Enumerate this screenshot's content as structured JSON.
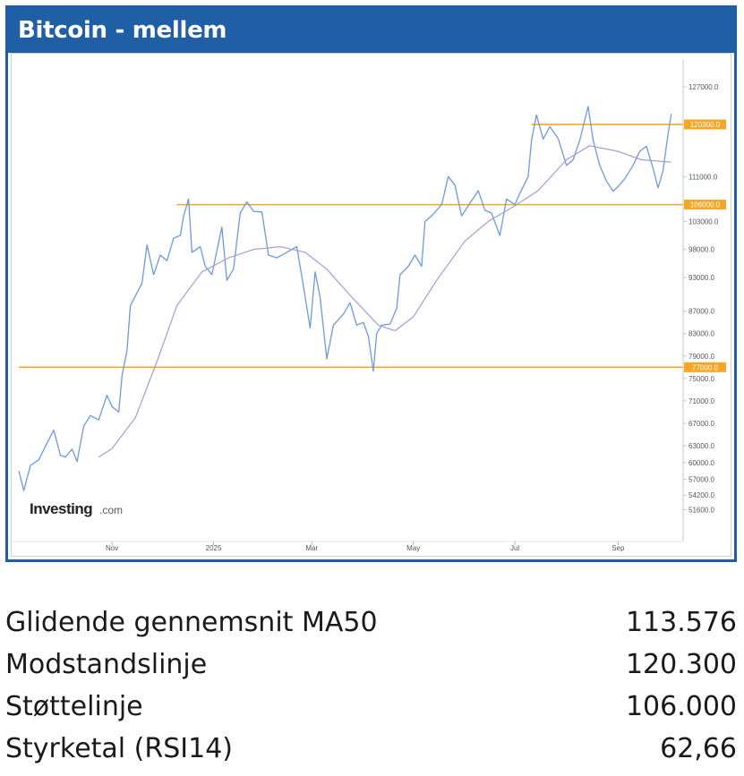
{
  "header": {
    "title": "Bitcoin - mellem"
  },
  "watermark": {
    "brand": "Investing",
    "suffix": ".com"
  },
  "colors": {
    "header_bg": "#1f5fa6",
    "price_line": "#6a9ae0",
    "ma_line": "#a39bd8",
    "level_line": "#f5a623",
    "level_label_bg": "#f5a623"
  },
  "chart_data": {
    "type": "line",
    "title": "Bitcoin - mellem",
    "ylim": [
      48000,
      131000
    ],
    "yticks": [
      51600,
      54200,
      57000,
      60000,
      63000,
      67000,
      71000,
      75000,
      79000,
      83000,
      87000,
      93000,
      98000,
      103000,
      111000,
      127000
    ],
    "ytick_labels": [
      "51600.0",
      "54200.0",
      "57000.0",
      "60000.0",
      "63000.0",
      "67000.0",
      "71000.0",
      "75000.0",
      "79000.0",
      "83000.0",
      "87000.0",
      "93000.0",
      "98000.0",
      "103000.0",
      "111000.0",
      "127000.0"
    ],
    "xticks": [
      {
        "date": "2024-11-01",
        "label": "Nov"
      },
      {
        "date": "2025-01-01",
        "label": "2025"
      },
      {
        "date": "2025-03-01",
        "label": "Mar"
      },
      {
        "date": "2025-05-01",
        "label": "May"
      },
      {
        "date": "2025-07-01",
        "label": "Jul"
      },
      {
        "date": "2025-09-01",
        "label": "Sep"
      }
    ],
    "xlim": [
      "2024-09-06",
      "2025-10-09"
    ],
    "series": [
      {
        "points": [
          [
            "2024-09-06",
            58500
          ],
          [
            "2024-09-09",
            55000
          ],
          [
            "2024-09-13",
            59500
          ],
          [
            "2024-09-18",
            60500
          ],
          [
            "2024-09-23",
            63500
          ],
          [
            "2024-09-27",
            65800
          ],
          [
            "2024-10-01",
            61300
          ],
          [
            "2024-10-04",
            61000
          ],
          [
            "2024-10-08",
            62400
          ],
          [
            "2024-10-11",
            60200
          ],
          [
            "2024-10-15",
            66500
          ],
          [
            "2024-10-19",
            68400
          ],
          [
            "2024-10-24",
            67600
          ],
          [
            "2024-10-29",
            72000
          ],
          [
            "2024-11-01",
            70000
          ],
          [
            "2024-11-05",
            69000
          ],
          [
            "2024-11-07",
            75500
          ],
          [
            "2024-11-10",
            80000
          ],
          [
            "2024-11-12",
            88000
          ],
          [
            "2024-11-15",
            89700
          ],
          [
            "2024-11-19",
            92000
          ],
          [
            "2024-11-22",
            98800
          ],
          [
            "2024-11-26",
            93500
          ],
          [
            "2024-11-30",
            97000
          ],
          [
            "2024-12-04",
            96000
          ],
          [
            "2024-12-08",
            100000
          ],
          [
            "2024-12-12",
            100500
          ],
          [
            "2024-12-14",
            104000
          ],
          [
            "2024-12-17",
            107000
          ],
          [
            "2024-12-19",
            97500
          ],
          [
            "2024-12-24",
            98500
          ],
          [
            "2024-12-27",
            95000
          ],
          [
            "2024-12-31",
            93500
          ],
          [
            "2025-01-06",
            102000
          ],
          [
            "2025-01-09",
            92500
          ],
          [
            "2025-01-13",
            94500
          ],
          [
            "2025-01-17",
            104500
          ],
          [
            "2025-01-21",
            106500
          ],
          [
            "2025-01-25",
            104800
          ],
          [
            "2025-01-30",
            104700
          ],
          [
            "2025-02-03",
            97000
          ],
          [
            "2025-02-08",
            96500
          ],
          [
            "2025-02-14",
            97500
          ],
          [
            "2025-02-20",
            98500
          ],
          [
            "2025-02-24",
            91500
          ],
          [
            "2025-02-28",
            84000
          ],
          [
            "2025-03-03",
            94000
          ],
          [
            "2025-03-06",
            89500
          ],
          [
            "2025-03-10",
            78500
          ],
          [
            "2025-03-14",
            84500
          ],
          [
            "2025-03-20",
            86500
          ],
          [
            "2025-03-24",
            88500
          ],
          [
            "2025-03-28",
            84500
          ],
          [
            "2025-04-01",
            85000
          ],
          [
            "2025-04-04",
            82500
          ],
          [
            "2025-04-07",
            76300
          ],
          [
            "2025-04-09",
            83000
          ],
          [
            "2025-04-12",
            84500
          ],
          [
            "2025-04-17",
            84700
          ],
          [
            "2025-04-21",
            87500
          ],
          [
            "2025-04-23",
            93500
          ],
          [
            "2025-04-28",
            95000
          ],
          [
            "2025-05-02",
            97000
          ],
          [
            "2025-05-06",
            95000
          ],
          [
            "2025-05-08",
            103000
          ],
          [
            "2025-05-12",
            104000
          ],
          [
            "2025-05-18",
            106000
          ],
          [
            "2025-05-22",
            111000
          ],
          [
            "2025-05-26",
            109500
          ],
          [
            "2025-05-30",
            104000
          ],
          [
            "2025-06-03",
            105800
          ],
          [
            "2025-06-09",
            108500
          ],
          [
            "2025-06-13",
            105000
          ],
          [
            "2025-06-17",
            104500
          ],
          [
            "2025-06-22",
            100500
          ],
          [
            "2025-06-26",
            107000
          ],
          [
            "2025-07-01",
            106000
          ],
          [
            "2025-07-04",
            108000
          ],
          [
            "2025-07-09",
            111000
          ],
          [
            "2025-07-11",
            117500
          ],
          [
            "2025-07-14",
            122000
          ],
          [
            "2025-07-18",
            117700
          ],
          [
            "2025-07-22",
            119900
          ],
          [
            "2025-07-27",
            117800
          ],
          [
            "2025-08-01",
            113000
          ],
          [
            "2025-08-05",
            114000
          ],
          [
            "2025-08-09",
            117500
          ],
          [
            "2025-08-14",
            123500
          ],
          [
            "2025-08-17",
            117500
          ],
          [
            "2025-08-21",
            113000
          ],
          [
            "2025-08-25",
            110200
          ],
          [
            "2025-08-29",
            108400
          ],
          [
            "2025-09-01",
            109200
          ],
          [
            "2025-09-05",
            110600
          ],
          [
            "2025-09-10",
            113000
          ],
          [
            "2025-09-14",
            115500
          ],
          [
            "2025-09-18",
            116400
          ],
          [
            "2025-09-22",
            112500
          ],
          [
            "2025-09-25",
            109000
          ],
          [
            "2025-09-28",
            112000
          ],
          [
            "2025-10-01",
            118500
          ],
          [
            "2025-10-03",
            122200
          ]
        ]
      },
      {
        "points": [
          [
            "2024-10-24",
            61000
          ],
          [
            "2024-11-01",
            62500
          ],
          [
            "2024-11-15",
            68000
          ],
          [
            "2024-11-28",
            78000
          ],
          [
            "2024-12-10",
            88000
          ],
          [
            "2024-12-25",
            94000
          ],
          [
            "2025-01-10",
            96500
          ],
          [
            "2025-01-25",
            98000
          ],
          [
            "2025-02-10",
            98500
          ],
          [
            "2025-02-25",
            97500
          ],
          [
            "2025-03-10",
            94500
          ],
          [
            "2025-03-25",
            89500
          ],
          [
            "2025-04-10",
            84500
          ],
          [
            "2025-04-20",
            83500
          ],
          [
            "2025-05-01",
            86000
          ],
          [
            "2025-05-15",
            92500
          ],
          [
            "2025-06-01",
            99500
          ],
          [
            "2025-06-15",
            103000
          ],
          [
            "2025-07-01",
            105800
          ],
          [
            "2025-07-15",
            108500
          ],
          [
            "2025-08-01",
            114000
          ],
          [
            "2025-08-15",
            116500
          ],
          [
            "2025-09-01",
            115500
          ],
          [
            "2025-09-15",
            114000
          ],
          [
            "2025-10-03",
            113576
          ]
        ]
      }
    ],
    "levels": [
      {
        "value": 120300,
        "from": "2025-07-11",
        "label": "120300.0"
      },
      {
        "value": 106000,
        "from": "2024-12-10",
        "label": "106000.0"
      },
      {
        "value": 77000,
        "from": "2024-09-06",
        "label": "77000.0"
      }
    ]
  },
  "stats": [
    {
      "label": "Glidende gennemsnit MA50",
      "value": "113.576"
    },
    {
      "label": "Modstandslinje",
      "value": "120.300"
    },
    {
      "label": "Støttelinje",
      "value": "106.000"
    },
    {
      "label": "Styrketal (RSI14)",
      "value": "62,66"
    }
  ]
}
